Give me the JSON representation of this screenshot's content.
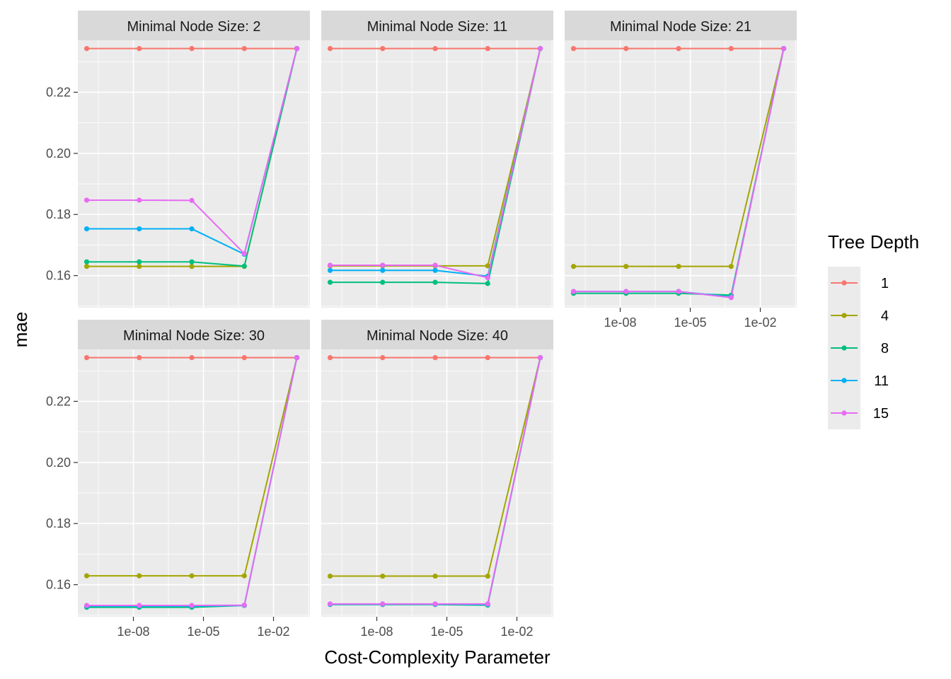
{
  "chart_data": {
    "type": "line",
    "xlabel": "Cost-Complexity Parameter",
    "ylabel": "mae",
    "x_scale": "log10",
    "x_tick_labels": [
      "1e-08",
      "1e-05",
      "1e-02"
    ],
    "x_tick_values": [
      1e-08,
      1e-05,
      0.01
    ],
    "y_tick_labels": [
      "0.16",
      "0.18",
      "0.20",
      "0.22"
    ],
    "y_tick_values": [
      0.16,
      0.18,
      0.2,
      0.22
    ],
    "ylim": [
      0.1495,
      0.237
    ],
    "xlim_log10": [
      -10.38,
      -0.44
    ],
    "x": [
      1e-10,
      1.778e-08,
      3.162e-06,
      0.0005623,
      0.1
    ],
    "legend_title": "Tree Depth",
    "legend_position": "right",
    "grid": true,
    "series_colors": {
      "1": "#F8766D",
      "4": "#A3A500",
      "8": "#00BF7D",
      "11": "#00B0F6",
      "15": "#E76BF3"
    },
    "panels": [
      {
        "strip": "Minimal Node Size: 2",
        "series": [
          {
            "name": "1",
            "values": [
              0.2343,
              0.2343,
              0.2343,
              0.2343,
              0.2343
            ]
          },
          {
            "name": "4",
            "values": [
              0.163,
              0.163,
              0.163,
              0.163,
              0.2343
            ]
          },
          {
            "name": "8",
            "values": [
              0.1645,
              0.1645,
              0.1645,
              0.1631,
              0.2343
            ]
          },
          {
            "name": "11",
            "values": [
              0.1753,
              0.1753,
              0.1753,
              0.167,
              0.2343
            ]
          },
          {
            "name": "15",
            "values": [
              0.1847,
              0.1847,
              0.1846,
              0.1672,
              0.2343
            ]
          }
        ]
      },
      {
        "strip": "Minimal Node Size: 11",
        "series": [
          {
            "name": "1",
            "values": [
              0.2343,
              0.2343,
              0.2343,
              0.2343,
              0.2343
            ]
          },
          {
            "name": "4",
            "values": [
              0.1632,
              0.1632,
              0.1632,
              0.1632,
              0.2343
            ]
          },
          {
            "name": "8",
            "values": [
              0.1578,
              0.1578,
              0.1578,
              0.1574,
              0.2343
            ]
          },
          {
            "name": "11",
            "values": [
              0.1617,
              0.1617,
              0.1617,
              0.1598,
              0.2343
            ]
          },
          {
            "name": "15",
            "values": [
              0.1634,
              0.1634,
              0.1634,
              0.1593,
              0.2343
            ]
          }
        ]
      },
      {
        "strip": "Minimal Node Size: 21",
        "series": [
          {
            "name": "1",
            "values": [
              0.2343,
              0.2343,
              0.2343,
              0.2343,
              0.2343
            ]
          },
          {
            "name": "4",
            "values": [
              0.163,
              0.163,
              0.163,
              0.163,
              0.2343
            ]
          },
          {
            "name": "8",
            "values": [
              0.1542,
              0.1542,
              0.1542,
              0.1536,
              0.2343
            ]
          },
          {
            "name": "11",
            "values": [
              0.1548,
              0.1548,
              0.1548,
              0.153,
              0.2343
            ]
          },
          {
            "name": "15",
            "values": [
              0.1548,
              0.1548,
              0.1548,
              0.1528,
              0.2343
            ]
          }
        ]
      },
      {
        "strip": "Minimal Node Size: 30",
        "series": [
          {
            "name": "1",
            "values": [
              0.2343,
              0.2343,
              0.2343,
              0.2343,
              0.2343
            ]
          },
          {
            "name": "4",
            "values": [
              0.1629,
              0.1629,
              0.1629,
              0.1629,
              0.2343
            ]
          },
          {
            "name": "8",
            "values": [
              0.1526,
              0.1526,
              0.1526,
              0.1532,
              0.2343
            ]
          },
          {
            "name": "11",
            "values": [
              0.153,
              0.153,
              0.153,
              0.1532,
              0.2343
            ]
          },
          {
            "name": "15",
            "values": [
              0.1532,
              0.1532,
              0.1532,
              0.1533,
              0.2343
            ]
          }
        ]
      },
      {
        "strip": "Minimal Node Size: 40",
        "series": [
          {
            "name": "1",
            "values": [
              0.2343,
              0.2343,
              0.2343,
              0.2343,
              0.2343
            ]
          },
          {
            "name": "4",
            "values": [
              0.1628,
              0.1628,
              0.1628,
              0.1628,
              0.2343
            ]
          },
          {
            "name": "8",
            "values": [
              0.1535,
              0.1535,
              0.1535,
              0.1533,
              0.2343
            ]
          },
          {
            "name": "11",
            "values": [
              0.1536,
              0.1536,
              0.1536,
              0.1535,
              0.2343
            ]
          },
          {
            "name": "15",
            "values": [
              0.1537,
              0.1537,
              0.1537,
              0.1537,
              0.2343
            ]
          }
        ]
      }
    ]
  }
}
